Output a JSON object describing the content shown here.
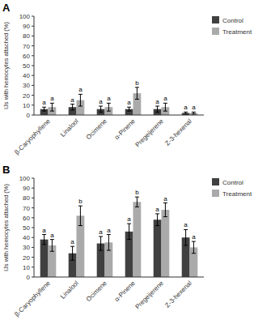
{
  "chart_data": [
    {
      "type": "bar",
      "title": "A",
      "categories": [
        "β-Caryophyllene",
        "Linalool",
        "Ocimene",
        "α-Pinene",
        "Pregeijerene",
        "Z-3-hexenal"
      ],
      "series": [
        {
          "name": "Control",
          "color": "#404040",
          "values": [
            6,
            8,
            6,
            6,
            6,
            2
          ],
          "errors": [
            2,
            3,
            3,
            2,
            3,
            1
          ],
          "letters": [
            "a",
            "a",
            "a",
            "a",
            "a",
            "a"
          ]
        },
        {
          "name": "Treatment",
          "color": "#aaaaaa",
          "values": [
            8,
            15,
            8,
            22,
            8,
            2
          ],
          "errors": [
            4,
            6,
            4,
            6,
            4,
            1
          ],
          "letters": [
            "a",
            "a",
            "a",
            "b",
            "a",
            "a"
          ]
        }
      ],
      "ylabel": "IJs with hemocytes attached (%)",
      "ylim": [
        0,
        100
      ],
      "yticks": [
        0,
        10,
        20,
        30,
        40,
        50,
        60,
        70,
        80,
        90,
        100
      ],
      "grid": false,
      "legend": "right"
    },
    {
      "type": "bar",
      "title": "B",
      "categories": [
        "β-Caryophyllene",
        "Linalool",
        "Ocimene",
        "α-Pinene",
        "Pregeijerene",
        "Z-3-hexenal"
      ],
      "series": [
        {
          "name": "Control",
          "color": "#404040",
          "values": [
            38,
            24,
            34,
            46,
            58,
            40
          ],
          "errors": [
            5,
            7,
            7,
            8,
            6,
            8
          ],
          "letters": [
            "a",
            "a",
            "a",
            "a",
            "a",
            "a"
          ]
        },
        {
          "name": "Treatment",
          "color": "#aaaaaa",
          "values": [
            32,
            62,
            35,
            76,
            68,
            30
          ],
          "errors": [
            6,
            10,
            8,
            5,
            7,
            6
          ],
          "letters": [
            "a",
            "b",
            "a",
            "b",
            "a",
            "a"
          ]
        }
      ],
      "ylabel": "IJs with hemocytes attached (%)",
      "ylim": [
        0,
        100
      ],
      "yticks": [
        0,
        10,
        20,
        30,
        40,
        50,
        60,
        70,
        80,
        90,
        100
      ],
      "grid": false,
      "legend": "right"
    }
  ]
}
